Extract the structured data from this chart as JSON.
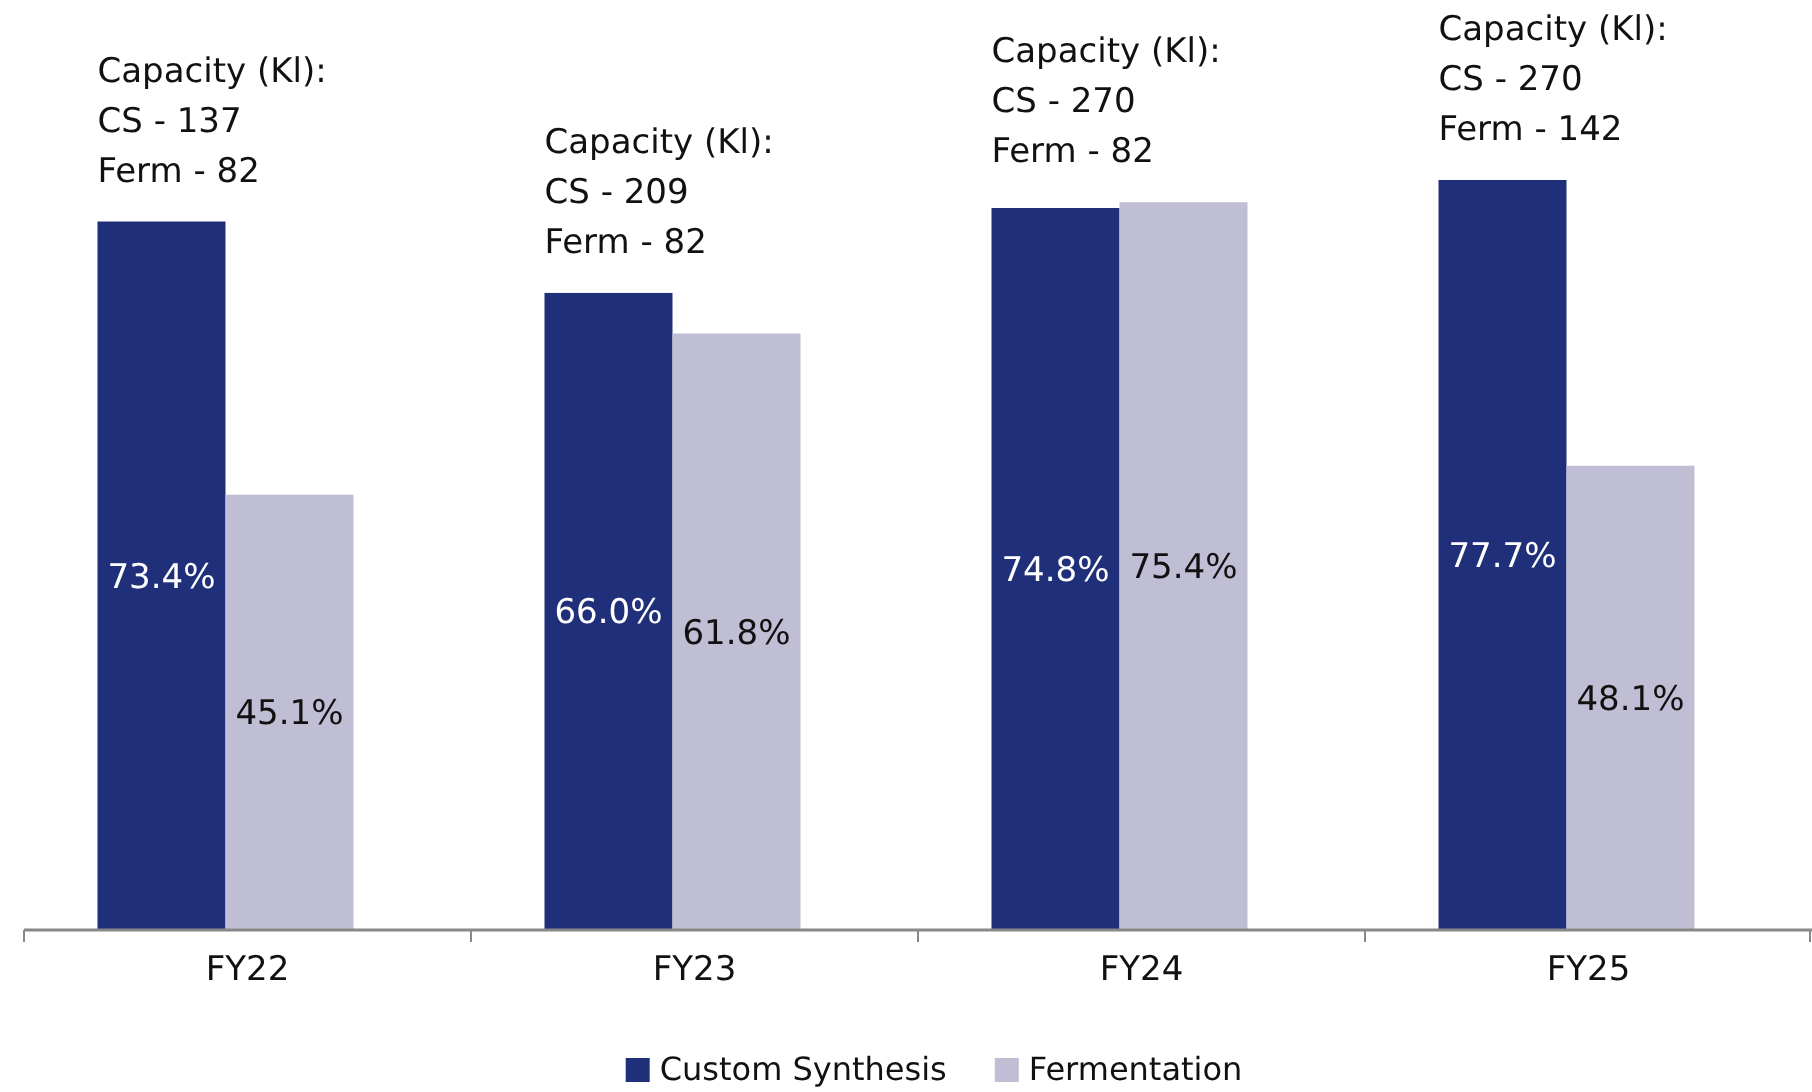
{
  "chart_data": {
    "type": "bar",
    "categories": [
      "FY22",
      "FY23",
      "FY24",
      "FY25"
    ],
    "series": [
      {
        "name": "Custom Synthesis",
        "color": "#1f2f7a",
        "values": [
          73.4,
          66.0,
          74.8,
          77.7
        ],
        "value_labels": [
          "73.4%",
          "66.0%",
          "74.8%",
          "77.7%"
        ]
      },
      {
        "name": "Fermentation",
        "color": "#c0bed4",
        "values": [
          45.1,
          61.8,
          75.4,
          48.1
        ],
        "value_labels": [
          "45.1%",
          "61.8%",
          "75.4%",
          "48.1%"
        ]
      }
    ],
    "tick_labels": "x",
    "legend": "bottom",
    "annotations": [
      "Capacity (Kl):\nCS - 137\nFerm - 82",
      "Capacity (Kl):\nCS - 209\nFerm - 82",
      "Capacity (Kl):\nCS - 270\nFerm - 82",
      "Capacity (Kl):\nCS - 270\nFerm - 142"
    ]
  }
}
